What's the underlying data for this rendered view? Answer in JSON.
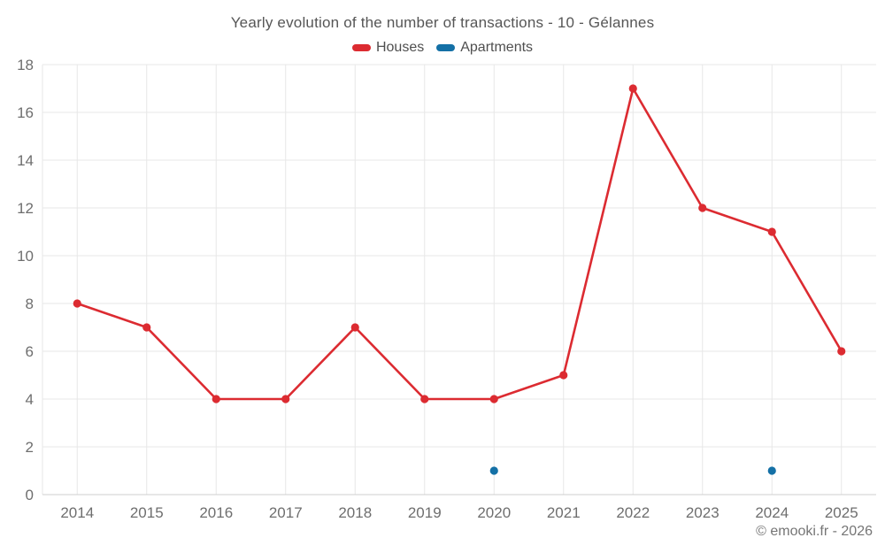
{
  "title": "Yearly evolution of the number of transactions - 10 - Gélannes",
  "footer": "© emooki.fr - 2026",
  "chart_data": {
    "type": "line",
    "title": "Yearly evolution of the number of transactions - 10 - Gélannes",
    "categories": [
      "2014",
      "2015",
      "2016",
      "2017",
      "2018",
      "2019",
      "2020",
      "2021",
      "2022",
      "2023",
      "2024",
      "2025"
    ],
    "series": [
      {
        "name": "Houses",
        "color": "#dc2b31",
        "marker": "circle",
        "values": [
          8,
          7,
          4,
          4,
          7,
          4,
          4,
          5,
          17,
          12,
          11,
          6
        ]
      },
      {
        "name": "Apartments",
        "color": "#1470a6",
        "marker": "circle",
        "values": [
          null,
          null,
          null,
          null,
          null,
          null,
          1,
          null,
          null,
          null,
          1,
          null
        ]
      }
    ],
    "xlabel": "",
    "ylabel": "",
    "ylim": [
      0,
      18
    ],
    "yticks": [
      0,
      2,
      4,
      6,
      8,
      10,
      12,
      14,
      16,
      18
    ],
    "grid": true,
    "legend_position": "top-center",
    "colors": {
      "grid": "#e7e7e7",
      "axis_line": "#cfcfcf",
      "tick_label": "#6e6e6e",
      "title_text": "#565656",
      "legend_text": "#4f4f4f"
    }
  }
}
